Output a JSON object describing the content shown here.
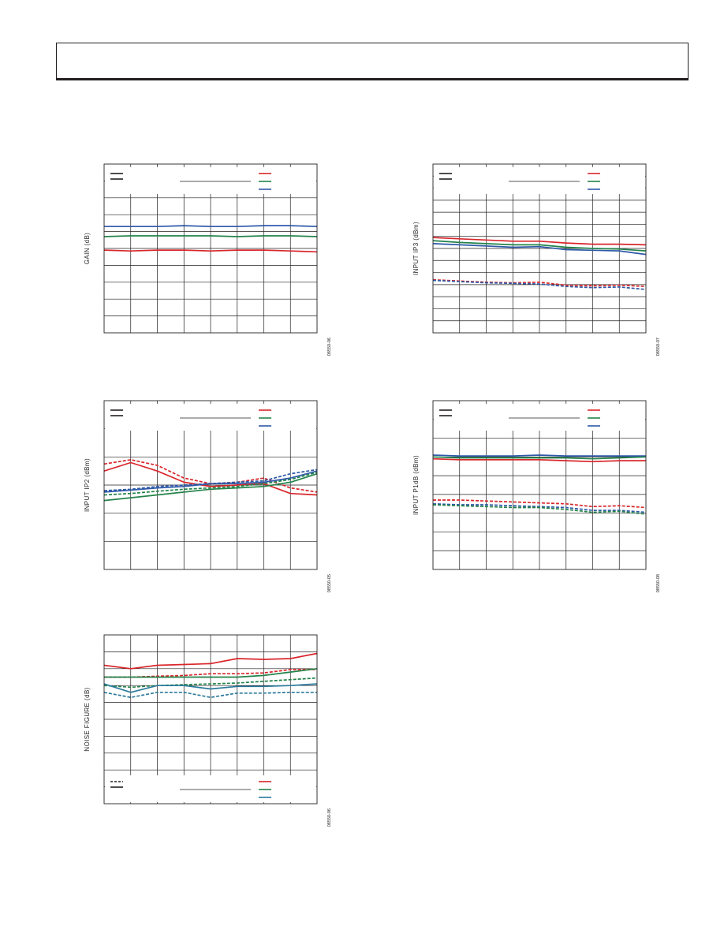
{
  "colors": {
    "red": "#d9262b",
    "green": "#23834a",
    "blue": "#2e59a8",
    "teal": "#2b7a9c",
    "grid": "#231f20"
  },
  "charts": [
    {
      "id": "gain",
      "ylabel": "GAIN (dB)",
      "code": "08550-06",
      "vlines": 8,
      "hlines": 10,
      "legend": {
        "position": "top",
        "styles": [
          "solid",
          "solid"
        ],
        "colors": [
          "red",
          "green",
          "blue"
        ]
      },
      "chart_data": {
        "type": "line",
        "x": [
          0,
          1,
          2,
          3,
          4,
          5,
          6,
          7,
          8
        ],
        "ylim": [
          0,
          10
        ],
        "series": [
          {
            "color": "blue",
            "dash": false,
            "values": [
              6.3,
              6.3,
              6.3,
              6.35,
              6.3,
              6.3,
              6.35,
              6.35,
              6.3
            ]
          },
          {
            "color": "green",
            "dash": false,
            "values": [
              5.7,
              5.75,
              5.75,
              5.75,
              5.75,
              5.7,
              5.75,
              5.75,
              5.7
            ]
          },
          {
            "color": "red",
            "dash": false,
            "values": [
              4.9,
              4.85,
              4.9,
              4.9,
              4.85,
              4.9,
              4.9,
              4.85,
              4.8
            ]
          }
        ]
      }
    },
    {
      "id": "input-ip3",
      "ylabel": "INPUT IP3 (dBm)",
      "code": "08550-07",
      "vlines": 8,
      "hlines": 14,
      "legend": {
        "position": "top",
        "styles": [
          "solid",
          "solid"
        ],
        "colors": [
          "red",
          "green",
          "blue"
        ]
      },
      "chart_data": {
        "type": "line",
        "x": [
          0,
          1,
          2,
          3,
          4,
          5,
          6,
          7,
          8
        ],
        "ylim": [
          0,
          14
        ],
        "series": [
          {
            "color": "red",
            "dash": false,
            "values": [
              7.9,
              7.8,
              7.7,
              7.6,
              7.6,
              7.45,
              7.35,
              7.35,
              7.3
            ]
          },
          {
            "color": "green",
            "dash": false,
            "values": [
              7.65,
              7.5,
              7.4,
              7.3,
              7.3,
              7.1,
              7.0,
              6.95,
              6.8
            ]
          },
          {
            "color": "blue",
            "dash": false,
            "values": [
              7.4,
              7.3,
              7.2,
              7.1,
              7.15,
              6.9,
              6.85,
              6.8,
              6.5
            ]
          },
          {
            "color": "red",
            "dash": true,
            "values": [
              4.4,
              4.3,
              4.2,
              4.15,
              4.2,
              3.95,
              3.9,
              3.95,
              3.85
            ]
          },
          {
            "color": "blue",
            "dash": true,
            "values": [
              4.35,
              4.25,
              4.15,
              4.1,
              4.05,
              3.85,
              3.75,
              3.8,
              3.6
            ]
          }
        ]
      }
    },
    {
      "id": "input-ip2",
      "ylabel": "INPUT IP2 (dBm)",
      "code": "08550-05",
      "vlines": 8,
      "hlines": 6,
      "legend": {
        "position": "top",
        "styles": [
          "solid",
          "solid"
        ],
        "colors": [
          "red",
          "green",
          "blue"
        ]
      },
      "chart_data": {
        "type": "line",
        "x": [
          0,
          1,
          2,
          3,
          4,
          5,
          6,
          7,
          8
        ],
        "ylim": [
          0,
          6
        ],
        "series": [
          {
            "color": "red",
            "dash": false,
            "values": [
              3.5,
              3.8,
              3.5,
              3.1,
              2.95,
              3.0,
              3.05,
              2.7,
              2.65
            ]
          },
          {
            "color": "red",
            "dash": true,
            "values": [
              3.75,
              3.9,
              3.7,
              3.25,
              3.05,
              3.1,
              3.25,
              2.9,
              2.75
            ]
          },
          {
            "color": "blue",
            "dash": false,
            "values": [
              2.75,
              2.82,
              2.9,
              2.95,
              3.05,
              3.05,
              3.1,
              3.25,
              3.5
            ]
          },
          {
            "color": "blue",
            "dash": true,
            "values": [
              2.8,
              2.85,
              2.95,
              3.0,
              3.05,
              3.1,
              3.15,
              3.4,
              3.55
            ]
          },
          {
            "color": "green",
            "dash": false,
            "values": [
              2.45,
              2.55,
              2.65,
              2.75,
              2.85,
              2.9,
              2.95,
              3.1,
              3.4
            ]
          },
          {
            "color": "green",
            "dash": true,
            "values": [
              2.65,
              2.7,
              2.78,
              2.85,
              2.9,
              2.95,
              3.05,
              3.2,
              3.45
            ]
          }
        ]
      }
    },
    {
      "id": "input-p1db",
      "ylabel": "INPUT P1dB (dBm)",
      "code": "08550-08",
      "vlines": 8,
      "hlines": 9,
      "legend": {
        "position": "top",
        "styles": [
          "solid",
          "solid"
        ],
        "colors": [
          "red",
          "green",
          "blue"
        ]
      },
      "chart_data": {
        "type": "line",
        "x": [
          0,
          1,
          2,
          3,
          4,
          5,
          6,
          7,
          8
        ],
        "ylim": [
          0,
          9
        ],
        "series": [
          {
            "color": "blue",
            "dash": false,
            "values": [
              6.1,
              6.05,
              6.05,
              6.05,
              6.1,
              6.05,
              6.05,
              6.05,
              6.05
            ]
          },
          {
            "color": "green",
            "dash": false,
            "values": [
              6.0,
              5.95,
              5.95,
              5.95,
              5.95,
              5.95,
              5.9,
              5.95,
              6.0
            ]
          },
          {
            "color": "red",
            "dash": false,
            "values": [
              5.9,
              5.85,
              5.85,
              5.85,
              5.85,
              5.8,
              5.75,
              5.8,
              5.8
            ]
          },
          {
            "color": "red",
            "dash": true,
            "values": [
              3.7,
              3.7,
              3.65,
              3.6,
              3.55,
              3.5,
              3.35,
              3.4,
              3.3
            ]
          },
          {
            "color": "blue",
            "dash": true,
            "values": [
              3.5,
              3.45,
              3.45,
              3.4,
              3.35,
              3.3,
              3.15,
              3.15,
              3.05
            ]
          },
          {
            "color": "green",
            "dash": true,
            "values": [
              3.45,
              3.4,
              3.35,
              3.3,
              3.3,
              3.2,
              3.05,
              3.1,
              2.95
            ]
          }
        ]
      }
    },
    {
      "id": "noise-figure",
      "ylabel": "NOISE FIGURE (dB)",
      "code": "08550-06",
      "vlines": 8,
      "hlines": 10,
      "legend": {
        "position": "bottom",
        "styles": [
          "dash",
          "solid"
        ],
        "colors": [
          "red",
          "green",
          "teal"
        ]
      },
      "chart_data": {
        "type": "line",
        "x": [
          0,
          1,
          2,
          3,
          4,
          5,
          6,
          7,
          8
        ],
        "ylim": [
          0,
          10
        ],
        "series": [
          {
            "color": "red",
            "dash": false,
            "values": [
              8.2,
              8.0,
              8.2,
              8.25,
              8.3,
              8.6,
              8.55,
              8.6,
              8.9
            ]
          },
          {
            "color": "red",
            "dash": true,
            "values": [
              7.5,
              7.5,
              7.55,
              7.6,
              7.7,
              7.7,
              7.75,
              7.95,
              7.95
            ]
          },
          {
            "color": "green",
            "dash": false,
            "values": [
              7.5,
              7.5,
              7.5,
              7.5,
              7.5,
              7.5,
              7.6,
              7.8,
              8.0
            ]
          },
          {
            "color": "green",
            "dash": true,
            "values": [
              7.0,
              6.9,
              7.0,
              7.05,
              7.1,
              7.15,
              7.25,
              7.35,
              7.45
            ]
          },
          {
            "color": "teal",
            "dash": false,
            "values": [
              7.1,
              6.6,
              7.0,
              7.0,
              6.8,
              6.95,
              6.95,
              7.0,
              7.1
            ]
          },
          {
            "color": "teal",
            "dash": true,
            "values": [
              6.6,
              6.3,
              6.6,
              6.6,
              6.3,
              6.55,
              6.55,
              6.6,
              6.6
            ]
          }
        ]
      }
    }
  ]
}
